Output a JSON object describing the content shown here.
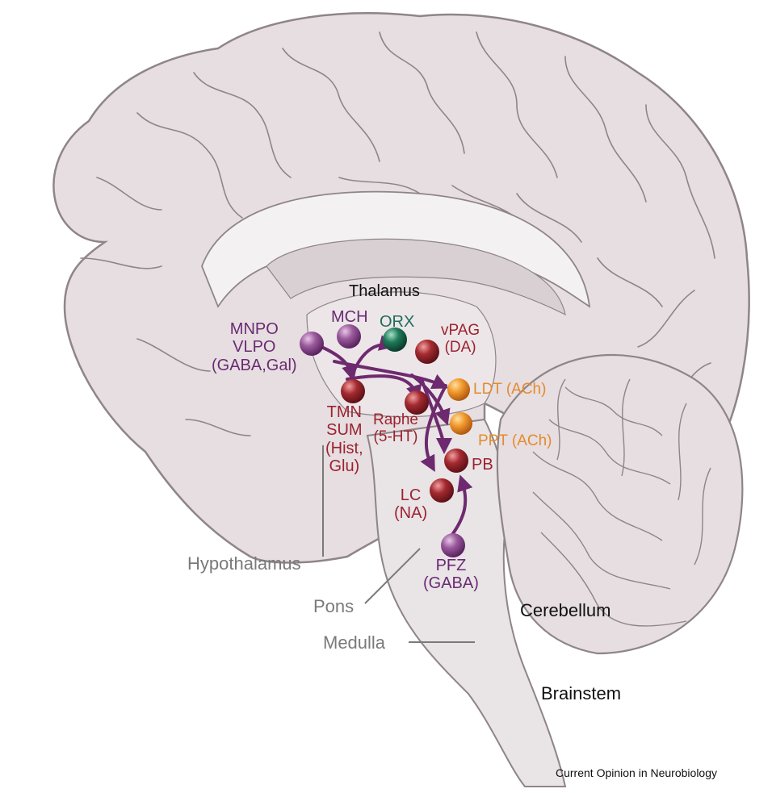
{
  "structures": {
    "thalamus": "Thalamus",
    "hypothalamus": "Hypothalamus",
    "pons": "Pons",
    "medulla": "Medulla",
    "cerebellum": "Cerebellum",
    "brainstem": "Brainstem"
  },
  "nuclei": {
    "mnpo_vlpo": {
      "line1": "MNPO",
      "line2": "VLPO",
      "line3": "(GABA,Gal)"
    },
    "mch": {
      "line1": "MCH"
    },
    "orx": {
      "line1": "ORX"
    },
    "vpag": {
      "line1": "vPAG",
      "line2": "(DA)"
    },
    "ldt": {
      "line1": "LDT (ACh)"
    },
    "ppt": {
      "line1": "PPT (ACh)"
    },
    "tmn_sum": {
      "line1": "TMN",
      "line2": "SUM",
      "line3": "(Hist,",
      "line4": "Glu)"
    },
    "raphe": {
      "line1": "Raphe",
      "line2": "(5-HT)"
    },
    "pb": {
      "line1": "PB"
    },
    "lc": {
      "line1": "LC",
      "line2": "(NA)"
    },
    "pfz": {
      "line1": "PFZ",
      "line2": "(GABA)"
    }
  },
  "credit": "Current Opinion in Neurobiology",
  "colors": {
    "purple_node": "#8a4a8e",
    "red_node": "#a12a2f",
    "orange_node": "#f29a2e",
    "green_node": "#1f7a5a",
    "arrow": "#6e2a6e",
    "brain_fill": "#e6dee0",
    "brain_stroke": "#8f8588"
  }
}
